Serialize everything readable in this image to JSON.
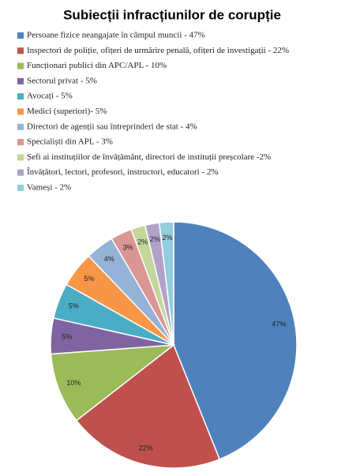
{
  "chart_data": {
    "type": "pie",
    "title": "Subiecții infracțiunilor de corupție",
    "categories": [
      "Persoane fizice neangajate în câmpul muncii - 47%",
      "Inspectori de poliție, ofițeri de urmărire penală, ofițeri de investigații - 22%",
      "Funcționari publici din APC/APL - 10%",
      "Sectorul privat - 5%",
      "Avocați - 5%",
      "Medici (superiori)- 5%",
      "Directori de agenții sau întreprinderi de stat - 4%",
      "Specialiști din APL - 3%",
      "Șefi ai instituțiilor de învățământ, directori de instituții preșcolare -2%",
      "Învățători, lectori, profesori, instructori, educatori - 2%",
      "Vameși - 2%"
    ],
    "values": [
      47,
      22,
      10,
      5,
      5,
      5,
      4,
      3,
      2,
      2,
      2
    ],
    "value_labels": [
      "47%",
      "22%",
      "10%",
      "5%",
      "5%",
      "5%",
      "4%",
      "3%",
      "2%",
      "2%",
      "2%"
    ],
    "colors": [
      "#4f81bd",
      "#c0504d",
      "#9bbb59",
      "#8064a2",
      "#4bacc6",
      "#f79646",
      "#95b3d7",
      "#d99694",
      "#c3d69b",
      "#b3a2c7",
      "#93cddd"
    ],
    "legend": "top"
  }
}
